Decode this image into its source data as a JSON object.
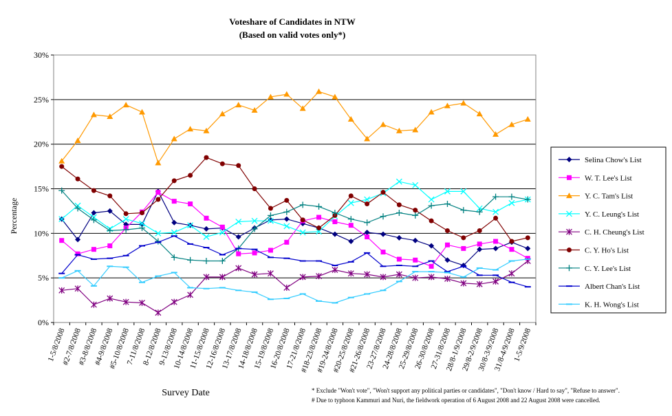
{
  "chart_data": {
    "type": "line",
    "title": "Voteshare of Candidates in NTW",
    "subtitle": "(Based on valid votes only*)",
    "xlabel": "Survey Date",
    "ylabel": "Percentage",
    "ylim": [
      0,
      30
    ],
    "yticks": [
      "0%",
      "5%",
      "10%",
      "15%",
      "20%",
      "25%",
      "30%"
    ],
    "grid": "horizontal",
    "legend_position": "right",
    "categories": [
      "1-5/8/2008",
      "#2-7/8/2008",
      "#3-8/8/2008",
      "#4-9/8/2008",
      "#5-10/8/2008",
      "7-11/8/2008",
      "8-12/8/2008",
      "9-13/8/2008",
      "10-14/8/2008",
      "11-15/8/2008",
      "12-16/8/2008",
      "13-17/8/2008",
      "14-18/8/2008",
      "15-19/8/2008",
      "16-20/8/2008",
      "17-21/8/2008",
      "#18-23/8/2008",
      "#19-24/8/2008",
      "#20-25/8/2008",
      "#21-26/8/2008",
      "23-27/8/2008",
      "24-28/8/2008",
      "25-29/8/2008",
      "26-30/8/2008",
      "27-31/8/2008",
      "28/8-1/9/2008",
      "29/8-2/9/2008",
      "30/8-3/9/2008",
      "31/8-4/9/2008",
      "1-5/9/2008"
    ],
    "series": [
      {
        "name": "Selina Chow's List",
        "color": "#000080",
        "marker": "diamond",
        "values": [
          11.6,
          9.3,
          12.3,
          12.5,
          11.0,
          11.0,
          14.7,
          11.2,
          10.9,
          10.5,
          10.6,
          9.6,
          10.6,
          11.5,
          11.6,
          11.1,
          10.6,
          9.9,
          9.1,
          10.1,
          9.9,
          9.5,
          9.2,
          8.6,
          7.0,
          6.4,
          8.2,
          8.3,
          9.0,
          8.3
        ]
      },
      {
        "name": "W. T. Lee's List",
        "color": "#ff00ff",
        "marker": "square",
        "values": [
          9.2,
          7.7,
          8.2,
          8.6,
          10.6,
          12.4,
          14.6,
          13.6,
          13.3,
          11.7,
          10.7,
          7.7,
          7.8,
          8.1,
          9.0,
          11.4,
          11.8,
          11.3,
          10.9,
          9.6,
          7.9,
          7.1,
          7.0,
          6.3,
          8.7,
          8.3,
          8.8,
          9.1,
          8.2,
          7.2
        ]
      },
      {
        "name": "Y. C. Tam's List",
        "color": "#ff9900",
        "marker": "triangle",
        "values": [
          18.1,
          20.4,
          23.3,
          23.1,
          24.4,
          23.6,
          17.9,
          20.6,
          21.7,
          21.5,
          23.4,
          24.4,
          23.8,
          25.3,
          25.6,
          24.0,
          25.9,
          25.3,
          22.8,
          20.6,
          22.2,
          21.5,
          21.6,
          23.6,
          24.3,
          24.6,
          23.4,
          21.1,
          22.2,
          22.8
        ]
      },
      {
        "name": "Y. C. Leung's List",
        "color": "#00ffff",
        "marker": "x",
        "values": [
          11.6,
          13.1,
          11.8,
          10.5,
          11.6,
          11.1,
          10.0,
          10.1,
          10.9,
          9.6,
          10.1,
          11.3,
          11.4,
          11.4,
          10.8,
          10.1,
          10.2,
          11.9,
          13.4,
          13.8,
          14.5,
          15.8,
          15.4,
          13.8,
          14.7,
          14.7,
          12.8,
          12.4,
          13.4,
          13.8
        ]
      },
      {
        "name": "C. H. Cheung's List",
        "color": "#800080",
        "marker": "star",
        "values": [
          3.6,
          3.8,
          2.0,
          2.7,
          2.3,
          2.2,
          1.1,
          2.3,
          3.1,
          5.1,
          5.1,
          6.1,
          5.4,
          5.5,
          3.9,
          5.1,
          5.2,
          5.9,
          5.5,
          5.4,
          5.1,
          5.4,
          5.0,
          5.1,
          4.9,
          4.4,
          4.3,
          4.6,
          5.5,
          6.9
        ]
      },
      {
        "name": "C. Y. Ho's List",
        "color": "#800000",
        "marker": "circle",
        "values": [
          17.5,
          16.1,
          14.8,
          14.2,
          12.2,
          12.3,
          13.8,
          15.9,
          16.5,
          18.5,
          17.8,
          17.6,
          15.0,
          12.8,
          13.7,
          11.5,
          10.6,
          12.0,
          14.2,
          13.3,
          14.6,
          13.2,
          12.6,
          11.4,
          10.3,
          9.5,
          10.3,
          11.7,
          9.1,
          9.5
        ]
      },
      {
        "name": "C. Y. Lee's List",
        "color": "#008080",
        "marker": "plus",
        "values": [
          14.8,
          12.8,
          11.5,
          10.3,
          10.4,
          10.6,
          9.1,
          7.3,
          7.0,
          6.9,
          6.9,
          8.3,
          10.5,
          12.0,
          12.4,
          13.2,
          13.0,
          12.3,
          11.6,
          11.2,
          11.9,
          12.3,
          12.0,
          13.1,
          13.3,
          12.6,
          12.4,
          14.1,
          14.1,
          13.8
        ]
      },
      {
        "name": "Albert Chan's List",
        "color": "#0000cc",
        "marker": "dash",
        "values": [
          5.5,
          7.6,
          7.1,
          7.2,
          7.5,
          8.6,
          9.0,
          9.7,
          8.8,
          8.4,
          7.6,
          8.3,
          8.2,
          7.3,
          7.2,
          6.9,
          6.9,
          6.4,
          6.8,
          7.8,
          6.3,
          6.4,
          6.3,
          6.9,
          5.7,
          6.3,
          5.3,
          5.3,
          4.5,
          4.0
        ]
      },
      {
        "name": "K. H. Wong's List",
        "color": "#33ccff",
        "marker": "dash",
        "values": [
          5.0,
          5.8,
          4.1,
          6.3,
          6.2,
          4.5,
          5.2,
          5.6,
          3.9,
          3.8,
          3.9,
          3.6,
          3.4,
          2.6,
          2.7,
          3.2,
          2.4,
          2.2,
          2.8,
          3.2,
          3.6,
          4.6,
          5.7,
          5.7,
          5.6,
          5.1,
          6.1,
          5.9,
          6.9,
          7.1
        ]
      }
    ],
    "notes": [
      "* Exclude \"Won't vote\", \"Won't support any political parties or candidates\", \"Don't know / Hard to say\", \"Refuse to answer\".",
      "# Due to typhoon Kammuri and Nuri, the fieldwork operation of 6 August 2008 and 22 August 2008 were cancelled."
    ]
  }
}
